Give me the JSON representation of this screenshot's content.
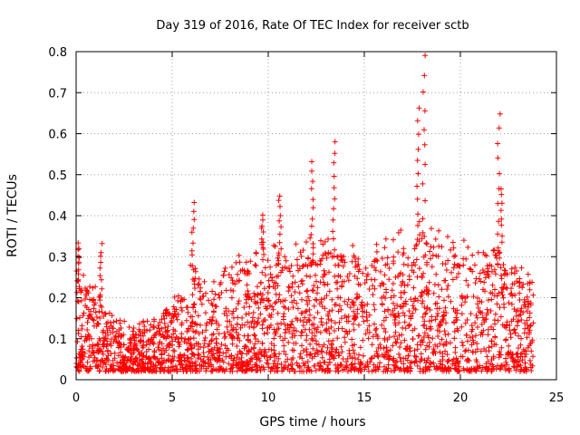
{
  "chart_data": {
    "type": "scatter",
    "title": "Day 319 of 2016, Rate Of TEC Index for receiver sctb",
    "xlabel": "GPS time / hours",
    "ylabel": "ROTI / TECUs",
    "xlim": [
      0,
      25
    ],
    "ylim": [
      0,
      0.8
    ],
    "xticks": [
      0,
      5,
      10,
      15,
      20,
      25
    ],
    "xtick_labels": [
      "0",
      "5",
      "10",
      "15",
      "20",
      "25"
    ],
    "yticks": [
      0,
      0.1,
      0.2,
      0.3,
      0.4,
      0.5,
      0.6,
      0.7,
      0.8
    ],
    "ytick_labels": [
      "0",
      "0.1",
      "0.2",
      "0.3",
      "0.4",
      "0.5",
      "0.6",
      "0.7",
      "0.8"
    ],
    "grid": true,
    "marker": "+",
    "marker_color": "#ff0000",
    "data_x_range": [
      0,
      23.8
    ],
    "series": [
      {
        "name": "ROTI",
        "envelope_hours": [
          0,
          1,
          2,
          3,
          4,
          5,
          6,
          7,
          8,
          9,
          10,
          11,
          12,
          13,
          14,
          15,
          16,
          17,
          18,
          19,
          20,
          21,
          22,
          23,
          23.8
        ],
        "typical_max": [
          0.25,
          0.2,
          0.13,
          0.12,
          0.13,
          0.17,
          0.25,
          0.2,
          0.25,
          0.28,
          0.3,
          0.28,
          0.3,
          0.32,
          0.3,
          0.28,
          0.3,
          0.32,
          0.35,
          0.32,
          0.3,
          0.28,
          0.28,
          0.25,
          0.22
        ],
        "peaks": [
          {
            "x": 0.1,
            "y": 0.33
          },
          {
            "x": 1.3,
            "y": 0.33
          },
          {
            "x": 6.1,
            "y": 0.43
          },
          {
            "x": 9.7,
            "y": 0.4
          },
          {
            "x": 10.6,
            "y": 0.45
          },
          {
            "x": 12.3,
            "y": 0.53
          },
          {
            "x": 13.4,
            "y": 0.58
          },
          {
            "x": 17.8,
            "y": 0.66
          },
          {
            "x": 18.1,
            "y": 0.79
          },
          {
            "x": 22.0,
            "y": 0.65
          },
          {
            "x": 22.1,
            "y": 0.47
          }
        ]
      }
    ]
  }
}
